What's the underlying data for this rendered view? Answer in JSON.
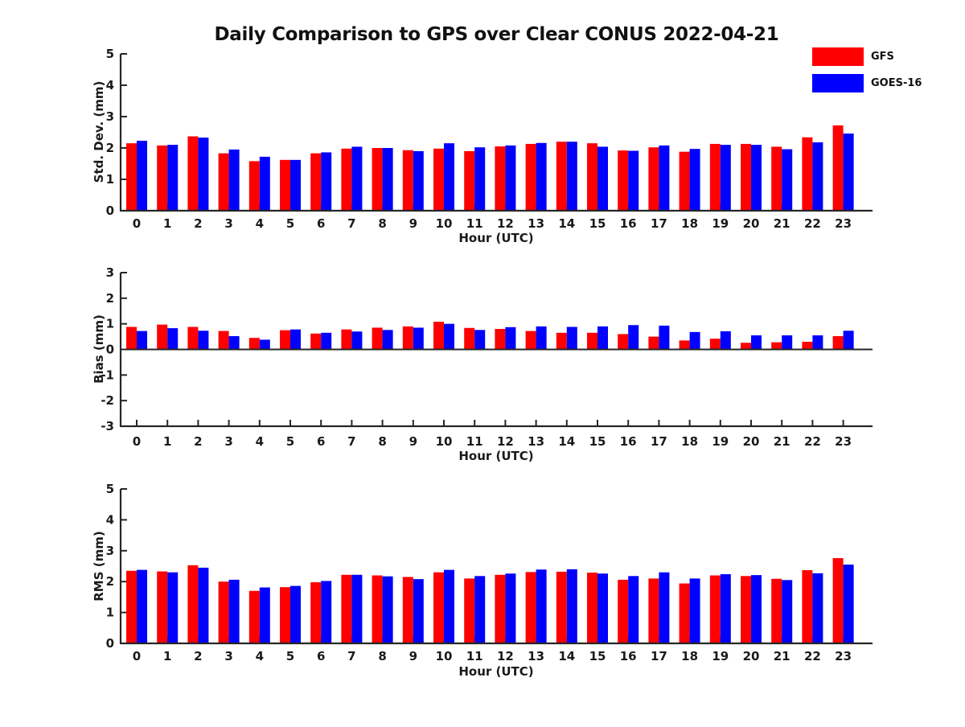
{
  "title": "Daily Comparison to GPS over Clear CONUS 2022-04-21",
  "colors": {
    "gfs": "#ff0000",
    "goes16": "#0000ff",
    "axis": "#262626",
    "text": "#1a1a1a"
  },
  "legend": {
    "position": "top-right",
    "items": [
      {
        "label": "GFS",
        "color": "#ff0000"
      },
      {
        "label": "GOES-16",
        "color": "#0000ff"
      }
    ]
  },
  "chart_data": [
    {
      "type": "bar",
      "title": "Daily Comparison to GPS over Clear CONUS 2022-04-21",
      "xlabel": "Hour (UTC)",
      "ylabel": "Std. Dev. (mm)",
      "grid": false,
      "ylim": [
        0,
        5
      ],
      "yticks": [
        0,
        1,
        2,
        3,
        4,
        5
      ],
      "categories": [
        0,
        1,
        2,
        3,
        4,
        5,
        6,
        7,
        8,
        9,
        10,
        11,
        12,
        13,
        14,
        15,
        16,
        17,
        18,
        19,
        20,
        21,
        22,
        23
      ],
      "series": [
        {
          "name": "GFS",
          "color": "#ff0000",
          "values": [
            2.15,
            2.08,
            2.37,
            1.83,
            1.58,
            1.62,
            1.83,
            1.98,
            2.0,
            1.93,
            1.98,
            1.9,
            2.05,
            2.13,
            2.2,
            2.15,
            1.92,
            2.02,
            1.88,
            2.13,
            2.13,
            2.04,
            2.34,
            2.72
          ]
        },
        {
          "name": "GOES-16",
          "color": "#0000ff",
          "values": [
            2.23,
            2.1,
            2.33,
            1.95,
            1.72,
            1.62,
            1.86,
            2.04,
            2.0,
            1.9,
            2.15,
            2.02,
            2.08,
            2.16,
            2.2,
            2.04,
            1.91,
            2.08,
            1.97,
            2.1,
            2.1,
            1.96,
            2.18,
            2.46
          ]
        }
      ]
    },
    {
      "type": "bar",
      "title": "",
      "xlabel": "Hour (UTC)",
      "ylabel": "Bias (mm)",
      "grid": false,
      "ylim": [
        -3,
        3
      ],
      "yticks": [
        -3,
        -2,
        -1,
        0,
        1,
        2,
        3
      ],
      "categories": [
        0,
        1,
        2,
        3,
        4,
        5,
        6,
        7,
        8,
        9,
        10,
        11,
        12,
        13,
        14,
        15,
        16,
        17,
        18,
        19,
        20,
        21,
        22,
        23
      ],
      "series": [
        {
          "name": "GFS",
          "color": "#ff0000",
          "values": [
            0.88,
            0.97,
            0.88,
            0.72,
            0.45,
            0.75,
            0.62,
            0.78,
            0.85,
            0.9,
            1.08,
            0.84,
            0.8,
            0.72,
            0.65,
            0.65,
            0.6,
            0.5,
            0.35,
            0.42,
            0.26,
            0.28,
            0.3,
            0.52
          ]
        },
        {
          "name": "GOES-16",
          "color": "#0000ff",
          "values": [
            0.72,
            0.83,
            0.73,
            0.52,
            0.38,
            0.78,
            0.65,
            0.7,
            0.76,
            0.85,
            1.0,
            0.76,
            0.87,
            0.9,
            0.88,
            0.9,
            0.95,
            0.93,
            0.68,
            0.71,
            0.55,
            0.55,
            0.55,
            0.73
          ]
        }
      ]
    },
    {
      "type": "bar",
      "title": "",
      "xlabel": "Hour (UTC)",
      "ylabel": "RMS (mm)",
      "grid": false,
      "ylim": [
        0,
        5
      ],
      "yticks": [
        0,
        1,
        2,
        3,
        4,
        5
      ],
      "categories": [
        0,
        1,
        2,
        3,
        4,
        5,
        6,
        7,
        8,
        9,
        10,
        11,
        12,
        13,
        14,
        15,
        16,
        17,
        18,
        19,
        20,
        21,
        22,
        23
      ],
      "series": [
        {
          "name": "GFS",
          "color": "#ff0000",
          "values": [
            2.35,
            2.33,
            2.53,
            2.0,
            1.7,
            1.82,
            1.98,
            2.22,
            2.2,
            2.15,
            2.3,
            2.1,
            2.22,
            2.31,
            2.32,
            2.29,
            2.06,
            2.1,
            1.94,
            2.2,
            2.18,
            2.09,
            2.37,
            2.76
          ]
        },
        {
          "name": "GOES-16",
          "color": "#0000ff",
          "values": [
            2.38,
            2.3,
            2.45,
            2.06,
            1.81,
            1.86,
            2.02,
            2.22,
            2.17,
            2.08,
            2.38,
            2.18,
            2.26,
            2.39,
            2.4,
            2.26,
            2.18,
            2.3,
            2.1,
            2.24,
            2.21,
            2.05,
            2.27,
            2.55
          ]
        }
      ]
    }
  ]
}
